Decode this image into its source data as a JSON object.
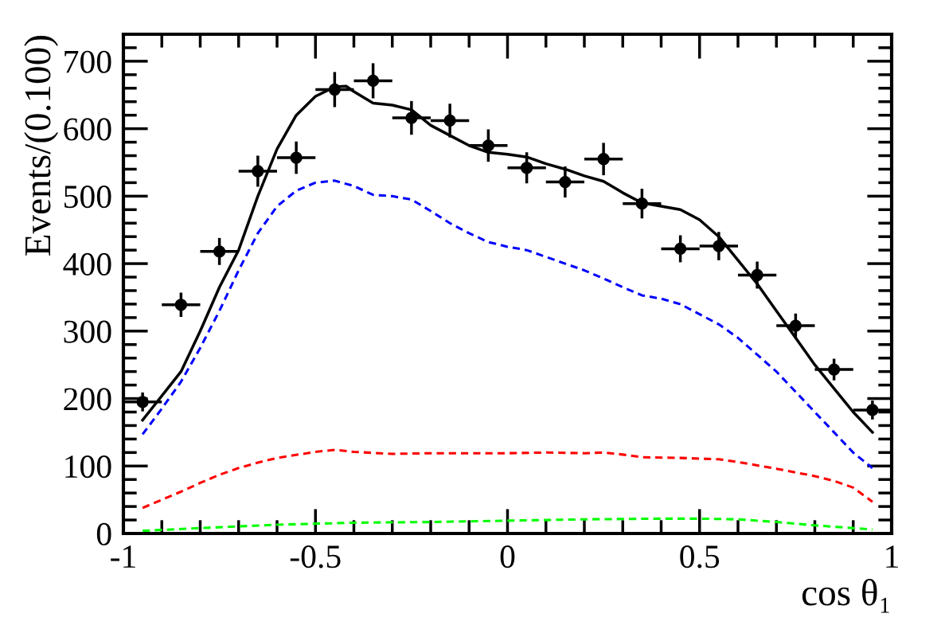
{
  "chart_data": {
    "type": "line",
    "xlabel": "cos θ₁",
    "ylabel": "Events/(0.100)",
    "xlim": [
      -1,
      1
    ],
    "ylim": [
      0,
      740
    ],
    "xticks": [
      -1,
      -0.5,
      0,
      0.5,
      1
    ],
    "yticks": [
      0,
      100,
      200,
      300,
      400,
      500,
      600,
      700
    ],
    "grid": false,
    "legend": false,
    "series": [
      {
        "color": "#00ff00",
        "line_style": "dashed",
        "marker": "none",
        "x": [
          -0.95,
          -0.8,
          -0.6,
          -0.4,
          -0.2,
          0,
          0.2,
          0.4,
          0.5,
          0.6,
          0.7,
          0.8,
          0.95
        ],
        "values": [
          4,
          8,
          13,
          16,
          17,
          19,
          21,
          22,
          22,
          21,
          17,
          12,
          6
        ]
      },
      {
        "color": "#ff0000",
        "line_style": "dashed",
        "marker": "none",
        "x": [
          -0.95,
          -0.9,
          -0.85,
          -0.8,
          -0.75,
          -0.7,
          -0.65,
          -0.6,
          -0.5,
          -0.45,
          -0.4,
          -0.3,
          -0.2,
          -0.1,
          0,
          0.1,
          0.2,
          0.25,
          0.3,
          0.35,
          0.45,
          0.55,
          0.6,
          0.7,
          0.8,
          0.85,
          0.9,
          0.95
        ],
        "values": [
          38,
          50,
          62,
          75,
          87,
          97,
          105,
          112,
          121,
          124,
          121,
          118,
          119,
          119,
          119,
          120,
          119,
          120,
          117,
          113,
          112,
          110,
          106,
          96,
          85,
          78,
          68,
          47
        ]
      },
      {
        "color": "#0000ff",
        "line_style": "dashed",
        "marker": "none",
        "x": [
          -0.95,
          -0.9,
          -0.85,
          -0.8,
          -0.75,
          -0.7,
          -0.65,
          -0.6,
          -0.55,
          -0.5,
          -0.45,
          -0.4,
          -0.35,
          -0.3,
          -0.25,
          -0.2,
          -0.15,
          -0.1,
          -0.05,
          0,
          0.05,
          0.1,
          0.15,
          0.2,
          0.25,
          0.3,
          0.35,
          0.4,
          0.45,
          0.5,
          0.55,
          0.6,
          0.65,
          0.7,
          0.75,
          0.8,
          0.85,
          0.9,
          0.95
        ],
        "values": [
          147,
          185,
          225,
          275,
          330,
          390,
          445,
          485,
          508,
          520,
          523,
          515,
          502,
          500,
          495,
          478,
          460,
          445,
          432,
          425,
          420,
          410,
          400,
          390,
          378,
          365,
          353,
          348,
          340,
          325,
          310,
          290,
          265,
          240,
          210,
          180,
          150,
          120,
          97
        ]
      },
      {
        "color": "#000000",
        "line_style": "solid",
        "marker": "none",
        "x": [
          -0.95,
          -0.85,
          -0.8,
          -0.75,
          -0.7,
          -0.65,
          -0.6,
          -0.55,
          -0.5,
          -0.45,
          -0.42,
          -0.4,
          -0.35,
          -0.3,
          -0.25,
          -0.2,
          -0.15,
          -0.1,
          -0.05,
          0,
          0.05,
          0.1,
          0.15,
          0.2,
          0.25,
          0.3,
          0.35,
          0.4,
          0.45,
          0.5,
          0.55,
          0.6,
          0.65,
          0.7,
          0.75,
          0.8,
          0.85,
          0.9,
          0.95
        ],
        "values": [
          168,
          240,
          300,
          365,
          420,
          500,
          570,
          620,
          648,
          662,
          663,
          655,
          638,
          635,
          628,
          605,
          590,
          575,
          565,
          562,
          558,
          548,
          540,
          530,
          522,
          505,
          490,
          485,
          480,
          465,
          440,
          405,
          370,
          330,
          290,
          250,
          215,
          180,
          150
        ]
      },
      {
        "type": "scatter",
        "color": "#000000",
        "marker": "circle",
        "x": [
          -0.95,
          -0.85,
          -0.75,
          -0.65,
          -0.55,
          -0.45,
          -0.35,
          -0.25,
          -0.15,
          -0.05,
          0.05,
          0.15,
          0.25,
          0.35,
          0.45,
          0.55,
          0.65,
          0.75,
          0.85,
          0.95
        ],
        "values": [
          195,
          339,
          418,
          537,
          557,
          658,
          671,
          616,
          612,
          575,
          542,
          521,
          555,
          489,
          422,
          426,
          383,
          308,
          243,
          183
        ],
        "errors": [
          14,
          18,
          20,
          23,
          24,
          26,
          26,
          25,
          25,
          24,
          23,
          23,
          24,
          22,
          20,
          21,
          20,
          18,
          16,
          14
        ],
        "xerrors": [
          0.05,
          0.05,
          0.05,
          0.05,
          0.05,
          0.05,
          0.05,
          0.05,
          0.05,
          0.05,
          0.05,
          0.05,
          0.05,
          0.05,
          0.05,
          0.05,
          0.05,
          0.05,
          0.05,
          0.05
        ]
      }
    ]
  }
}
